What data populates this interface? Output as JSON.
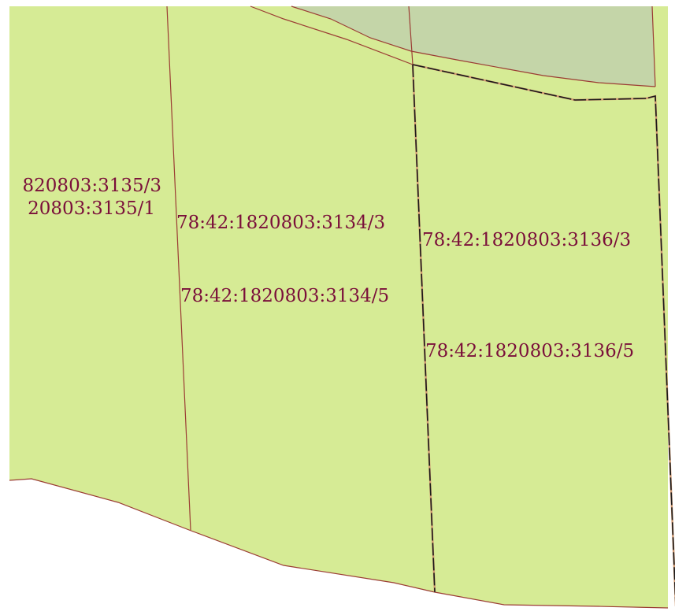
{
  "map": {
    "colors": {
      "parcel_fill": "#d6eb95",
      "green_zone_fill": "#c4d5a8",
      "parcel_border": "#9b3c34",
      "boundary_line": "#1a1a1a",
      "label_text": "#7a0f3a",
      "background": "#ffffff"
    },
    "labels": {
      "parcel_3135_3": "820803:3135/3",
      "parcel_3135_1": "20803:3135/1",
      "parcel_3134_3": "78:42:1820803:3134/3",
      "parcel_3134_5": "78:42:1820803:3134/5",
      "parcel_3136_3": "78:42:1820803:3136/3",
      "parcel_3136_5": "78:42:1820803:3136/5"
    }
  }
}
